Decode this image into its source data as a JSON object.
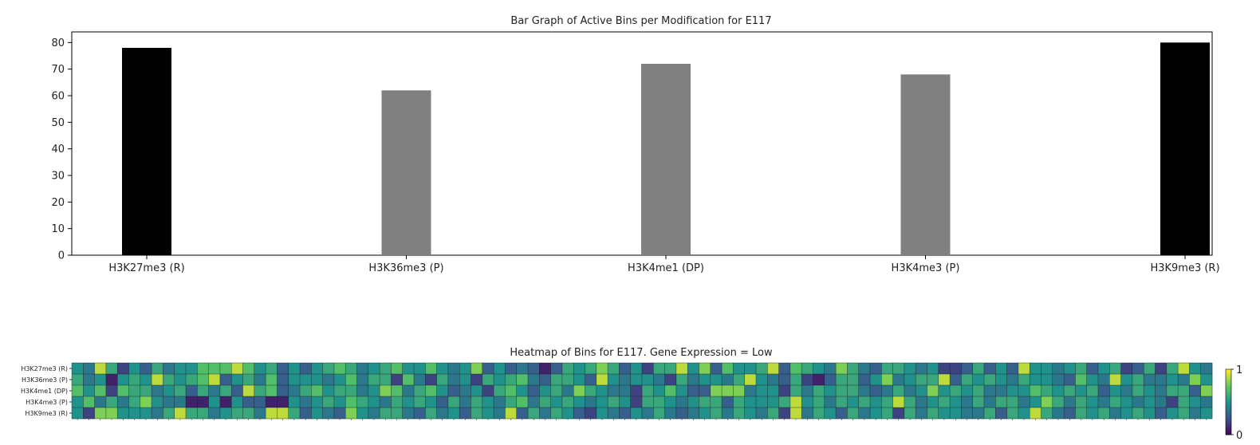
{
  "chart_data": [
    {
      "type": "bar",
      "title": "Bar Graph of Active Bins per Modification for E117",
      "categories": [
        "H3K27me3 (R)",
        "H3K36me3 (P)",
        "H3K4me1 (DP)",
        "H3K4me3 (P)",
        "H3K9me3 (R)"
      ],
      "values": [
        78,
        62,
        72,
        68,
        80
      ],
      "colors": [
        "#000000",
        "#808080",
        "#808080",
        "#808080",
        "#000000"
      ],
      "ylim": [
        0,
        84
      ],
      "yticks": [
        0,
        10,
        20,
        30,
        40,
        50,
        60,
        70,
        80
      ],
      "xlabel": "",
      "ylabel": ""
    },
    {
      "type": "heatmap",
      "title": "Heatmap of Bins for E117. Gene Expression = Low",
      "rows": [
        "H3K27me3 (R)",
        "H3K36me3 (P)",
        "H3K4me1 (DP)",
        "H3K4me3 (P)",
        "H3K9me3 (R)"
      ],
      "n_columns": 100,
      "colormap": "viridis",
      "colorbar": {
        "min": 0,
        "max": 1,
        "ticks": [
          "0",
          "1"
        ]
      },
      "values": [
        [
          0.5,
          0.4,
          0.9,
          0.6,
          0.2,
          0.5,
          0.3,
          0.6,
          0.4,
          0.5,
          0.5,
          0.7,
          0.7,
          0.7,
          0.9,
          0.7,
          0.5,
          0.6,
          0.3,
          0.5,
          0.3,
          0.5,
          0.6,
          0.7,
          0.6,
          0.4,
          0.5,
          0.6,
          0.7,
          0.5,
          0.5,
          0.7,
          0.5,
          0.4,
          0.5,
          0.8,
          0.3,
          0.5,
          0.3,
          0.4,
          0.3,
          0.1,
          0.3,
          0.6,
          0.5,
          0.6,
          0.8,
          0.6,
          0.3,
          0.5,
          0.2,
          0.6,
          0.6,
          0.9,
          0.5,
          0.8,
          0.3,
          0.7,
          0.5,
          0.5,
          0.6,
          0.9,
          0.3,
          0.7,
          0.6,
          0.5,
          0.4,
          0.8,
          0.6,
          0.4,
          0.3,
          0.6,
          0.6,
          0.5,
          0.4,
          0.5,
          0.2,
          0.2,
          0.3,
          0.6,
          0.3,
          0.5,
          0.3,
          0.9,
          0.5,
          0.5,
          0.4,
          0.5,
          0.6,
          0.3,
          0.5,
          0.6,
          0.2,
          0.3,
          0.6,
          0.2,
          0.6,
          0.9,
          0.5,
          0.4
        ],
        [
          0.6,
          0.4,
          0.5,
          0.1,
          0.5,
          0.6,
          0.5,
          0.9,
          0.6,
          0.5,
          0.6,
          0.7,
          0.9,
          0.3,
          0.5,
          0.6,
          0.4,
          0.7,
          0.3,
          0.5,
          0.5,
          0.5,
          0.4,
          0.5,
          0.7,
          0.4,
          0.6,
          0.6,
          0.2,
          0.7,
          0.4,
          0.2,
          0.6,
          0.4,
          0.5,
          0.2,
          0.6,
          0.5,
          0.6,
          0.7,
          0.4,
          0.3,
          0.6,
          0.6,
          0.5,
          0.3,
          0.9,
          0.5,
          0.4,
          0.5,
          0.5,
          0.4,
          0.2,
          0.6,
          0.4,
          0.5,
          0.5,
          0.4,
          0.6,
          0.9,
          0.5,
          0.4,
          0.3,
          0.6,
          0.2,
          0.1,
          0.3,
          0.6,
          0.6,
          0.3,
          0.5,
          0.8,
          0.4,
          0.5,
          0.6,
          0.6,
          0.9,
          0.3,
          0.6,
          0.5,
          0.6,
          0.5,
          0.4,
          0.6,
          0.5,
          0.5,
          0.4,
          0.3,
          0.7,
          0.5,
          0.4,
          0.9,
          0.5,
          0.6,
          0.4,
          0.4,
          0.5,
          0.4,
          0.8,
          0.5
        ],
        [
          0.7,
          0.5,
          0.7,
          0.2,
          0.7,
          0.6,
          0.6,
          0.4,
          0.5,
          0.6,
          0.3,
          0.6,
          0.4,
          0.6,
          0.3,
          0.9,
          0.6,
          0.7,
          0.3,
          0.4,
          0.6,
          0.7,
          0.5,
          0.6,
          0.6,
          0.4,
          0.5,
          0.8,
          0.7,
          0.4,
          0.6,
          0.7,
          0.5,
          0.3,
          0.4,
          0.5,
          0.2,
          0.6,
          0.7,
          0.5,
          0.3,
          0.5,
          0.6,
          0.4,
          0.8,
          0.6,
          0.5,
          0.4,
          0.4,
          0.2,
          0.6,
          0.5,
          0.7,
          0.5,
          0.3,
          0.3,
          0.8,
          0.8,
          0.8,
          0.4,
          0.5,
          0.5,
          0.2,
          0.6,
          0.4,
          0.6,
          0.5,
          0.6,
          0.6,
          0.4,
          0.3,
          0.4,
          0.6,
          0.4,
          0.5,
          0.8,
          0.5,
          0.6,
          0.5,
          0.6,
          0.4,
          0.4,
          0.5,
          0.5,
          0.7,
          0.6,
          0.5,
          0.6,
          0.5,
          0.6,
          0.3,
          0.5,
          0.4,
          0.6,
          0.5,
          0.4,
          0.6,
          0.6,
          0.3,
          0.8
        ],
        [
          0.5,
          0.7,
          0.4,
          0.6,
          0.4,
          0.6,
          0.8,
          0.5,
          0.4,
          0.4,
          0.1,
          0.1,
          0.5,
          0.1,
          0.5,
          0.3,
          0.3,
          0.1,
          0.1,
          0.5,
          0.4,
          0.5,
          0.6,
          0.5,
          0.7,
          0.6,
          0.5,
          0.4,
          0.6,
          0.5,
          0.6,
          0.5,
          0.3,
          0.6,
          0.4,
          0.6,
          0.5,
          0.4,
          0.6,
          0.7,
          0.4,
          0.6,
          0.5,
          0.6,
          0.5,
          0.4,
          0.5,
          0.6,
          0.5,
          0.2,
          0.6,
          0.6,
          0.5,
          0.4,
          0.5,
          0.6,
          0.6,
          0.3,
          0.6,
          0.5,
          0.5,
          0.5,
          0.6,
          0.9,
          0.5,
          0.6,
          0.4,
          0.6,
          0.5,
          0.6,
          0.5,
          0.6,
          0.9,
          0.6,
          0.4,
          0.5,
          0.6,
          0.5,
          0.4,
          0.6,
          0.4,
          0.6,
          0.6,
          0.4,
          0.5,
          0.8,
          0.6,
          0.4,
          0.6,
          0.5,
          0.4,
          0.6,
          0.5,
          0.4,
          0.5,
          0.4,
          0.2,
          0.6,
          0.5,
          0.4
        ],
        [
          0.5,
          0.2,
          0.8,
          0.8,
          0.5,
          0.5,
          0.5,
          0.4,
          0.6,
          0.9,
          0.6,
          0.6,
          0.4,
          0.5,
          0.6,
          0.6,
          0.4,
          0.9,
          0.9,
          0.6,
          0.3,
          0.5,
          0.4,
          0.3,
          0.8,
          0.5,
          0.4,
          0.6,
          0.6,
          0.4,
          0.3,
          0.6,
          0.4,
          0.5,
          0.3,
          0.6,
          0.5,
          0.4,
          0.9,
          0.3,
          0.6,
          0.4,
          0.6,
          0.5,
          0.3,
          0.2,
          0.5,
          0.4,
          0.3,
          0.5,
          0.4,
          0.6,
          0.4,
          0.3,
          0.4,
          0.5,
          0.6,
          0.4,
          0.6,
          0.5,
          0.4,
          0.6,
          0.2,
          0.9,
          0.4,
          0.6,
          0.5,
          0.3,
          0.6,
          0.4,
          0.5,
          0.6,
          0.2,
          0.6,
          0.4,
          0.6,
          0.5,
          0.5,
          0.4,
          0.4,
          0.6,
          0.3,
          0.6,
          0.5,
          0.9,
          0.6,
          0.4,
          0.3,
          0.6,
          0.5,
          0.6,
          0.4,
          0.5,
          0.6,
          0.5,
          0.3,
          0.5,
          0.6,
          0.4,
          0.5
        ]
      ]
    }
  ]
}
